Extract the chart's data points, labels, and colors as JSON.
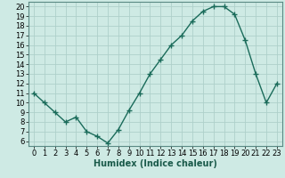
{
  "x": [
    0,
    1,
    2,
    3,
    4,
    5,
    6,
    7,
    8,
    9,
    10,
    11,
    12,
    13,
    14,
    15,
    16,
    17,
    18,
    19,
    20,
    21,
    22,
    23
  ],
  "y": [
    11,
    10,
    9,
    8,
    8.5,
    7,
    6.5,
    5.8,
    7.2,
    9.2,
    11,
    13,
    14.5,
    16,
    17,
    18.5,
    19.5,
    20,
    20,
    19.2,
    16.5,
    13,
    10,
    12
  ],
  "line_color": "#1a6b5a",
  "marker": "+",
  "marker_size": 4,
  "bg_color": "#ceeae4",
  "grid_color": "#aed0ca",
  "xlabel": "Humidex (Indice chaleur)",
  "xlim": [
    -0.5,
    23.5
  ],
  "ylim": [
    5.5,
    20.5
  ],
  "xticks": [
    0,
    1,
    2,
    3,
    4,
    5,
    6,
    7,
    8,
    9,
    10,
    11,
    12,
    13,
    14,
    15,
    16,
    17,
    18,
    19,
    20,
    21,
    22,
    23
  ],
  "yticks": [
    6,
    7,
    8,
    9,
    10,
    11,
    12,
    13,
    14,
    15,
    16,
    17,
    18,
    19,
    20
  ],
  "xlabel_fontsize": 7,
  "tick_fontsize": 6,
  "line_width": 1.0
}
